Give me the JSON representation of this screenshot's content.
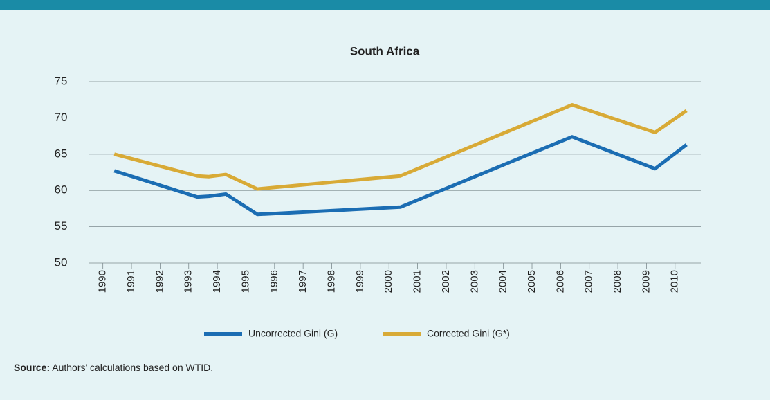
{
  "chart_data": {
    "type": "line",
    "title": "South Africa",
    "x": [
      1990.4,
      1993.3,
      1993.7,
      1994.3,
      1995.4,
      2000.4,
      2006.4,
      2009.3,
      2010.4
    ],
    "series": [
      {
        "name": "Uncorrected Gini  (G)",
        "color": "#1b6db3",
        "values": [
          62.7,
          59.1,
          59.2,
          59.5,
          56.7,
          57.7,
          67.4,
          63.0,
          66.3
        ]
      },
      {
        "name": "Corrected Gini (G*)",
        "color": "#d8aa36",
        "values": [
          65.0,
          62.0,
          61.9,
          62.2,
          60.2,
          62.0,
          71.8,
          68.0,
          71.0
        ]
      }
    ],
    "xlim": [
      1989.5,
      2010.9
    ],
    "xticks": [
      1990,
      1991,
      1992,
      1993,
      1994,
      1995,
      1996,
      1997,
      1998,
      1999,
      2000,
      2001,
      2002,
      2003,
      2004,
      2005,
      2006,
      2007,
      2008,
      2009,
      2010
    ],
    "ylim": [
      50,
      75
    ],
    "yticks": [
      50,
      55,
      60,
      65,
      70,
      75
    ],
    "grid": true,
    "source_label": "Source:",
    "source_text": "Authors’ calculations based on WTID."
  }
}
